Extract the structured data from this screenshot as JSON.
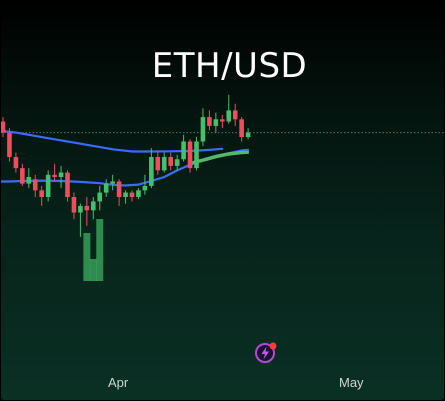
{
  "chart_data": {
    "type": "candlestick",
    "title": "ETH/USD",
    "x_tick_labels": [
      "Apr",
      "May"
    ],
    "grid": false,
    "legend": "none",
    "colors": {
      "up": "#43c06a",
      "down": "#ef4d5c",
      "ma_blue": "#3a6bff",
      "ma_green": "#56b86a",
      "price_line": "#4a7d68",
      "volume": "#3fae5f"
    },
    "candles": [
      {
        "i": 0,
        "o": 3640,
        "c": 3590,
        "h": 3660,
        "l": 3570
      },
      {
        "i": 1,
        "o": 3590,
        "c": 3480,
        "h": 3610,
        "l": 3460
      },
      {
        "i": 2,
        "o": 3480,
        "c": 3430,
        "h": 3500,
        "l": 3410
      },
      {
        "i": 3,
        "o": 3430,
        "c": 3360,
        "h": 3450,
        "l": 3350
      },
      {
        "i": 4,
        "o": 3360,
        "c": 3390,
        "h": 3430,
        "l": 3340
      },
      {
        "i": 5,
        "o": 3380,
        "c": 3330,
        "h": 3400,
        "l": 3300
      },
      {
        "i": 6,
        "o": 3330,
        "c": 3300,
        "h": 3350,
        "l": 3260
      },
      {
        "i": 7,
        "o": 3300,
        "c": 3400,
        "h": 3420,
        "l": 3280
      },
      {
        "i": 8,
        "o": 3400,
        "c": 3390,
        "h": 3450,
        "l": 3370
      },
      {
        "i": 9,
        "o": 3390,
        "c": 3410,
        "h": 3440,
        "l": 3340
      },
      {
        "i": 10,
        "o": 3410,
        "c": 3300,
        "h": 3420,
        "l": 3280
      },
      {
        "i": 11,
        "o": 3300,
        "c": 3230,
        "h": 3320,
        "l": 3200
      },
      {
        "i": 12,
        "o": 3230,
        "c": 3260,
        "h": 3270,
        "l": 3120
      },
      {
        "i": 13,
        "o": 3260,
        "c": 3240,
        "h": 3300,
        "l": 3170
      },
      {
        "i": 14,
        "o": 3240,
        "c": 3280,
        "h": 3300,
        "l": 3200
      },
      {
        "i": 15,
        "o": 3280,
        "c": 3320,
        "h": 3350,
        "l": 3240
      },
      {
        "i": 16,
        "o": 3320,
        "c": 3360,
        "h": 3380,
        "l": 3300
      },
      {
        "i": 17,
        "o": 3360,
        "c": 3370,
        "h": 3400,
        "l": 3330
      },
      {
        "i": 18,
        "o": 3370,
        "c": 3300,
        "h": 3380,
        "l": 3260
      },
      {
        "i": 19,
        "o": 3300,
        "c": 3320,
        "h": 3330,
        "l": 3270
      },
      {
        "i": 20,
        "o": 3320,
        "c": 3300,
        "h": 3330,
        "l": 3280
      },
      {
        "i": 21,
        "o": 3300,
        "c": 3330,
        "h": 3340,
        "l": 3290
      },
      {
        "i": 22,
        "o": 3330,
        "c": 3350,
        "h": 3400,
        "l": 3310
      },
      {
        "i": 23,
        "o": 3350,
        "c": 3480,
        "h": 3520,
        "l": 3340
      },
      {
        "i": 24,
        "o": 3480,
        "c": 3420,
        "h": 3510,
        "l": 3400
      },
      {
        "i": 25,
        "o": 3420,
        "c": 3480,
        "h": 3500,
        "l": 3410
      },
      {
        "i": 26,
        "o": 3480,
        "c": 3440,
        "h": 3500,
        "l": 3420
      },
      {
        "i": 27,
        "o": 3440,
        "c": 3470,
        "h": 3490,
        "l": 3420
      },
      {
        "i": 28,
        "o": 3470,
        "c": 3550,
        "h": 3580,
        "l": 3460
      },
      {
        "i": 29,
        "o": 3550,
        "c": 3430,
        "h": 3560,
        "l": 3410
      },
      {
        "i": 30,
        "o": 3430,
        "c": 3550,
        "h": 3570,
        "l": 3420
      },
      {
        "i": 31,
        "o": 3550,
        "c": 3660,
        "h": 3700,
        "l": 3530
      },
      {
        "i": 32,
        "o": 3660,
        "c": 3620,
        "h": 3690,
        "l": 3600
      },
      {
        "i": 33,
        "o": 3620,
        "c": 3650,
        "h": 3680,
        "l": 3590
      },
      {
        "i": 34,
        "o": 3650,
        "c": 3640,
        "h": 3670,
        "l": 3610
      },
      {
        "i": 35,
        "o": 3640,
        "c": 3690,
        "h": 3760,
        "l": 3630
      },
      {
        "i": 36,
        "o": 3690,
        "c": 3650,
        "h": 3720,
        "l": 3620
      },
      {
        "i": 37,
        "o": 3650,
        "c": 3570,
        "h": 3660,
        "l": 3550
      },
      {
        "i": 38,
        "o": 3570,
        "c": 3590,
        "h": 3610,
        "l": 3560
      }
    ],
    "volume_bars": [
      {
        "i": 13,
        "v": 0.48
      },
      {
        "i": 14,
        "v": 0.22
      },
      {
        "i": 15,
        "v": 0.62
      }
    ],
    "ma_blue": [
      [
        -1,
        3600
      ],
      [
        2,
        3590
      ],
      [
        5,
        3575
      ],
      [
        8,
        3560
      ],
      [
        11,
        3545
      ],
      [
        14,
        3530
      ],
      [
        17,
        3515
      ],
      [
        20,
        3505
      ],
      [
        23,
        3505
      ],
      [
        26,
        3506
      ],
      [
        29,
        3507
      ],
      [
        32,
        3512
      ],
      [
        34,
        3517
      ]
    ],
    "ma_blue_lower": [
      [
        -1,
        3370
      ],
      [
        1,
        3370
      ],
      [
        3,
        3372
      ],
      [
        6,
        3374
      ],
      [
        9,
        3372
      ],
      [
        12,
        3368
      ],
      [
        15,
        3362
      ],
      [
        17,
        3355
      ],
      [
        19,
        3352
      ],
      [
        21,
        3356
      ],
      [
        23,
        3372
      ],
      [
        25,
        3390
      ],
      [
        27,
        3420
      ],
      [
        29,
        3445
      ],
      [
        31,
        3468
      ],
      [
        33,
        3485
      ],
      [
        35,
        3497
      ],
      [
        37,
        3510
      ],
      [
        38,
        3512
      ]
    ],
    "ma_green": [
      [
        29,
        3455
      ],
      [
        31,
        3470
      ],
      [
        33,
        3486
      ],
      [
        35,
        3498
      ],
      [
        37,
        3504
      ],
      [
        38,
        3504
      ]
    ],
    "ma_green_lower": [
      [
        29,
        3448
      ],
      [
        31,
        3462
      ],
      [
        33,
        3478
      ],
      [
        35,
        3490
      ],
      [
        37,
        3497
      ],
      [
        38,
        3498
      ]
    ],
    "last_price": 3590
  }
}
